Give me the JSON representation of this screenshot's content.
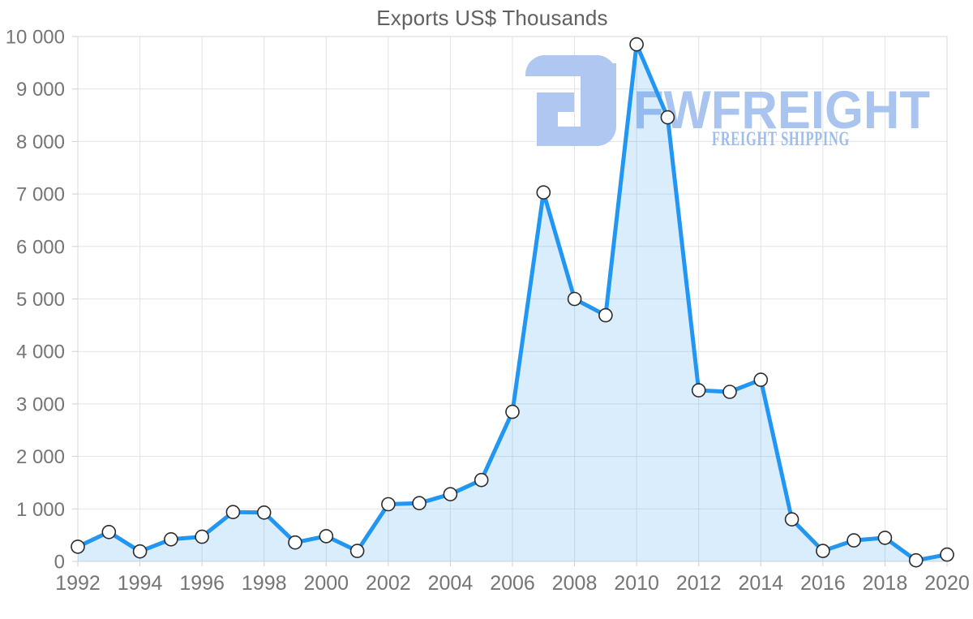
{
  "chart_data": {
    "type": "area",
    "title": "Exports US$ Thousands",
    "xlabel": "",
    "ylabel": "",
    "x": [
      1992,
      1993,
      1994,
      1995,
      1996,
      1997,
      1998,
      1999,
      2000,
      2001,
      2002,
      2003,
      2004,
      2005,
      2006,
      2007,
      2008,
      2009,
      2010,
      2011,
      2012,
      2013,
      2014,
      2015,
      2016,
      2017,
      2018,
      2019,
      2020
    ],
    "series": [
      {
        "name": "Exports US$ Thousands",
        "values": [
          280,
          560,
          190,
          420,
          470,
          940,
          930,
          360,
          480,
          200,
          1090,
          1110,
          1280,
          1550,
          2850,
          7030,
          5000,
          4690,
          9850,
          8460,
          3260,
          3230,
          3460,
          800,
          200,
          400,
          450,
          20,
          130
        ]
      }
    ],
    "xlim": [
      1992,
      2020
    ],
    "ylim": [
      0,
      10000
    ],
    "grid": true,
    "legend_position": "none",
    "marker": "circle",
    "y_ticks": [
      {
        "value": 0,
        "label": "0"
      },
      {
        "value": 1000,
        "label": "1 000"
      },
      {
        "value": 2000,
        "label": "2 000"
      },
      {
        "value": 3000,
        "label": "3 000"
      },
      {
        "value": 4000,
        "label": "4 000"
      },
      {
        "value": 5000,
        "label": "5 000"
      },
      {
        "value": 6000,
        "label": "6 000"
      },
      {
        "value": 7000,
        "label": "7 000"
      },
      {
        "value": 8000,
        "label": "8 000"
      },
      {
        "value": 9000,
        "label": "9 000"
      },
      {
        "value": 10000,
        "label": "10 000"
      }
    ],
    "x_ticks": [
      {
        "value": 1992,
        "label": "1992"
      },
      {
        "value": 1994,
        "label": "1994"
      },
      {
        "value": 1996,
        "label": "1996"
      },
      {
        "value": 1998,
        "label": "1998"
      },
      {
        "value": 2000,
        "label": "2000"
      },
      {
        "value": 2002,
        "label": "2002"
      },
      {
        "value": 2004,
        "label": "2004"
      },
      {
        "value": 2006,
        "label": "2006"
      },
      {
        "value": 2008,
        "label": "2008"
      },
      {
        "value": 2010,
        "label": "2010"
      },
      {
        "value": 2012,
        "label": "2012"
      },
      {
        "value": 2014,
        "label": "2014"
      },
      {
        "value": 2016,
        "label": "2016"
      },
      {
        "value": 2018,
        "label": "2018"
      },
      {
        "value": 2020,
        "label": "2020"
      }
    ],
    "colors": {
      "line": "#2196f3",
      "area_fill": "rgba(33,150,243,0.17)",
      "marker_fill": "#ffffff",
      "marker_stroke": "#2b2b2b",
      "grid": "#e3e3e3",
      "border": "#d8d8d8",
      "tick": "#cfcfcf",
      "axis_text": "#757575",
      "title_text": "#616161"
    }
  },
  "watermark": {
    "brand": "FWFREIGHT",
    "tagline": "FREIGHT SHIPPING",
    "brand_color": "#a9c4ef",
    "tagline_color": "#9fbdeb",
    "icon_color": "#b0c8f1"
  }
}
